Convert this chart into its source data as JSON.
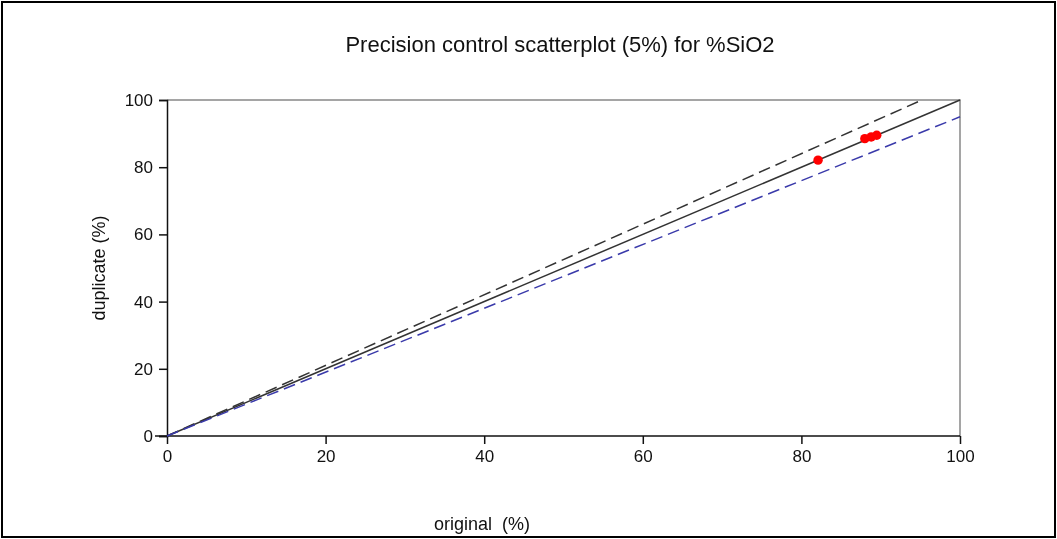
{
  "chart_data": {
    "type": "scatter",
    "title": "Precision control scatterplot (5%) for %SiO2",
    "xlabel": "original  (%)",
    "ylabel": "duplicate (%)",
    "xlim": [
      0,
      100
    ],
    "ylim": [
      0,
      100
    ],
    "xticks": [
      0,
      20,
      40,
      60,
      80,
      100
    ],
    "yticks": [
      0,
      20,
      40,
      60,
      80,
      100
    ],
    "grid": false,
    "series": [
      {
        "type": "line",
        "color": "#333333",
        "line_style": "solid",
        "marker": "none",
        "x": [
          0,
          100
        ],
        "values": [
          0,
          100
        ]
      },
      {
        "type": "line",
        "color": "#333333",
        "line_style": "dashed",
        "marker": "none",
        "x": [
          0,
          95.2
        ],
        "values": [
          0,
          100
        ]
      },
      {
        "type": "line",
        "color": "#3a3aaa",
        "line_style": "dashed",
        "marker": "none",
        "x": [
          0,
          100
        ],
        "values": [
          0,
          95
        ]
      },
      {
        "type": "scatter",
        "color": "#ff0000",
        "marker": "circle",
        "x": [
          82.1,
          88.0,
          88.8,
          89.5
        ],
        "values": [
          82.1,
          88.5,
          89.0,
          89.5
        ]
      }
    ]
  }
}
